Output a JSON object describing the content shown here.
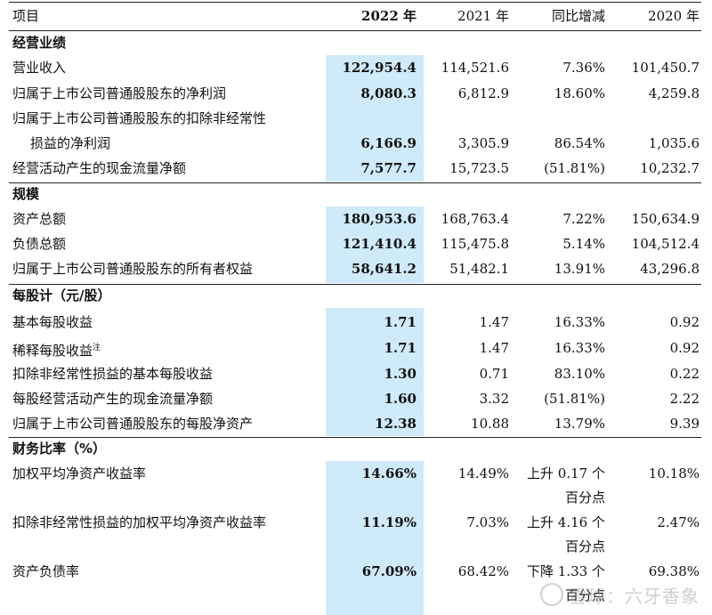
{
  "header": {
    "item": "项目",
    "y2022": "2022 年",
    "y2021": "2021 年",
    "yoy": "同比增减",
    "y2020": "2020 年"
  },
  "sections": {
    "performance": "经营业绩",
    "scale": "规模",
    "per_share": "每股计（元/股）",
    "ratios": "财务比率（%）"
  },
  "rows": {
    "revenue": {
      "label": "营业收入",
      "v2022": "122,954.4",
      "v2021": "114,521.6",
      "yoy": "7.36%",
      "v2020": "101,450.7"
    },
    "net_profit": {
      "label": "归属于上市公司普通股股东的净利润",
      "v2022": "8,080.3",
      "v2021": "6,812.9",
      "yoy": "18.60%",
      "v2020": "4,259.8"
    },
    "net_profit_ex": {
      "label_line1": "归属于上市公司普通股股东的扣除非经常性",
      "label_line2": "损益的净利润",
      "v2022": "6,166.9",
      "v2021": "3,305.9",
      "yoy": "86.54%",
      "v2020": "1,035.6"
    },
    "cash_flow": {
      "label": "经营活动产生的现金流量净额",
      "v2022": "7,577.7",
      "v2021": "15,723.5",
      "yoy": "(51.81%)",
      "v2020": "10,232.7"
    },
    "total_assets": {
      "label": "资产总额",
      "v2022": "180,953.6",
      "v2021": "168,763.4",
      "yoy": "7.22%",
      "v2020": "150,634.9"
    },
    "total_liab": {
      "label": "负债总额",
      "v2022": "121,410.4",
      "v2021": "115,475.8",
      "yoy": "5.14%",
      "v2020": "104,512.4"
    },
    "equity": {
      "label": "归属于上市公司普通股股东的所有者权益",
      "v2022": "58,641.2",
      "v2021": "51,482.1",
      "yoy": "13.91%",
      "v2020": "43,296.8"
    },
    "basic_eps": {
      "label": "基本每股收益",
      "v2022": "1.71",
      "v2021": "1.47",
      "yoy": "16.33%",
      "v2020": "0.92"
    },
    "diluted_eps": {
      "label": "稀释每股收益",
      "note": "注",
      "v2022": "1.71",
      "v2021": "1.47",
      "yoy": "16.33%",
      "v2020": "0.92"
    },
    "basic_eps_ex": {
      "label": "扣除非经常性损益的基本每股收益",
      "v2022": "1.30",
      "v2021": "0.71",
      "yoy": "83.10%",
      "v2020": "0.22"
    },
    "cf_per_share": {
      "label": "每股经营活动产生的现金流量净额",
      "v2022": "1.60",
      "v2021": "3.32",
      "yoy": "(51.81%)",
      "v2020": "2.22"
    },
    "nav_per_share": {
      "label": "归属于上市公司普通股股东的每股净资产",
      "v2022": "12.38",
      "v2021": "10.88",
      "yoy": "13.79%",
      "v2020": "9.39"
    },
    "roe": {
      "label": "加权平均净资产收益率",
      "v2022": "14.66%",
      "v2021": "14.49%",
      "yoy_line1": "上升 0.17 个",
      "yoy_line2": "百分点",
      "v2020": "10.18%"
    },
    "roe_ex": {
      "label": "扣除非经常性损益的加权平均净资产收益率",
      "v2022": "11.19%",
      "v2021": "7.03%",
      "yoy_line1": "上升 4.16 个",
      "yoy_line2": "百分点",
      "v2020": "2.47%"
    },
    "debt_ratio": {
      "label": "资产负债率",
      "v2022": "67.09%",
      "v2021": "68.42%",
      "yoy_line1": "下降 1.33 个",
      "yoy_line2": "百分点",
      "v2020": "69.38%"
    }
  },
  "watermark": "雪球：六牙香象",
  "colors": {
    "highlight": "#cfeaf8",
    "text": "#111111"
  }
}
